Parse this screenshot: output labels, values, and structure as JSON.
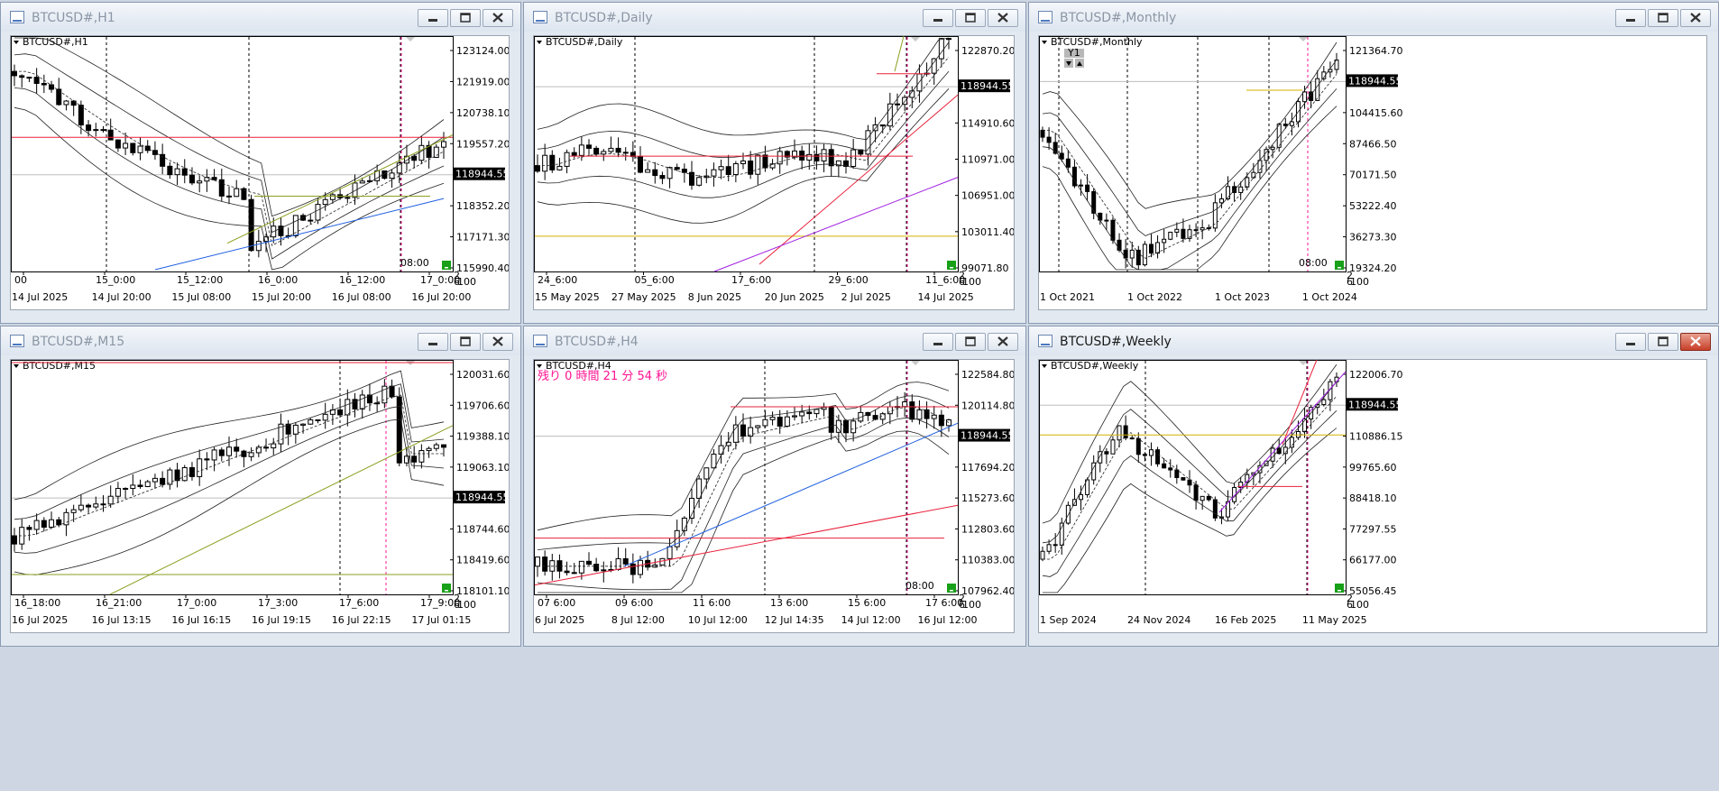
{
  "windows": [
    {
      "id": "h1",
      "title": "BTCUSD#,H1",
      "symbol_label": "BTCUSD#,H1",
      "active": false,
      "price_labels": [
        "123124.00",
        "121919.00",
        "120738.10",
        "119557.20",
        "118944.55",
        "118352.20",
        "117171.30",
        "115990.40"
      ],
      "current_price": "118944.55",
      "time_labels": [
        "00",
        "15_0:00",
        "15_12:00",
        "16_0:00",
        "16_12:00",
        "17_0:00"
      ],
      "date_labels": [
        "14 Jul 2025",
        "14 Jul 20:00",
        "15 Jul 08:00",
        "15 Jul 20:00",
        "16 Jul 08:00",
        "16 Jul 20:00"
      ],
      "timer_text": "08:00",
      "corner_labels": [
        "2",
        "6",
        "100"
      ]
    },
    {
      "id": "daily",
      "title": "BTCUSD#,Daily",
      "symbol_label": "BTCUSD#,Daily",
      "active": false,
      "price_labels": [
        "122870.20",
        "118944.55",
        "114910.60",
        "110971.00",
        "106951.00",
        "103011.40",
        "99071.80"
      ],
      "current_price": "118944.55",
      "time_labels": [
        "24_6:00",
        "05_6:00",
        "17_6:00",
        "29_6:00",
        "11_6:00"
      ],
      "date_labels": [
        "15 May 2025",
        "27 May 2025",
        "8 Jun 2025",
        "20 Jun 2025",
        "2 Jul 2025",
        "14 Jul 2025"
      ],
      "corner_labels": [
        "2",
        "6",
        "100"
      ]
    },
    {
      "id": "monthly",
      "title": "BTCUSD#,Monthly",
      "symbol_label": "BTCUSD#,Monthly",
      "active": false,
      "price_labels": [
        "121364.70",
        "118944.55",
        "104415.60",
        "87466.50",
        "70171.50",
        "53222.40",
        "36273.30",
        "19324.20"
      ],
      "current_price": "118944.55",
      "date_labels": [
        "1 Oct 2021",
        "1 Oct 2022",
        "1 Oct 2023",
        "1 Oct 2024"
      ],
      "badge_text": "Y1",
      "timer_text": "08:00",
      "corner_labels": [
        "2",
        "6",
        "100"
      ]
    },
    {
      "id": "m15",
      "title": "BTCUSD#,M15",
      "symbol_label": "BTCUSD#,M15",
      "active": false,
      "price_labels": [
        "120031.60",
        "119706.60",
        "119388.10",
        "119063.10",
        "118944.55",
        "118744.60",
        "118419.60",
        "118101.10"
      ],
      "current_price": "118944.55",
      "time_labels": [
        "16_18:00",
        "16_21:00",
        "17_0:00",
        "17_3:00",
        "17_6:00",
        "17_9:00"
      ],
      "date_labels": [
        "16 Jul 2025",
        "16 Jul 13:15",
        "16 Jul 16:15",
        "16 Jul 19:15",
        "16 Jul 22:15",
        "17 Jul 01:15"
      ],
      "corner_labels": [
        "2",
        "6",
        "100"
      ]
    },
    {
      "id": "h4",
      "title": "BTCUSD#,H4",
      "symbol_label": "BTCUSD#,H4",
      "active": false,
      "countdown_text": "残り 0 時間 21 分 54 秒",
      "price_labels": [
        "122584.80",
        "120114.80",
        "118944.55",
        "117694.20",
        "115273.60",
        "112803.60",
        "110383.00",
        "107962.40"
      ],
      "current_price": "118944.55",
      "time_labels": [
        "07 6:00",
        "09 6:00",
        "11 6:00",
        "13 6:00",
        "15 6:00",
        "17 6:00"
      ],
      "date_labels": [
        "6 Jul 2025",
        "8 Jul 12:00",
        "10 Jul 12:00",
        "12 Jul 14:35",
        "14 Jul 12:00",
        "16 Jul 12:00"
      ],
      "timer_text": "08:00",
      "corner_labels": [
        "2",
        "6",
        "100"
      ]
    },
    {
      "id": "weekly",
      "title": "BTCUSD#,Weekly",
      "symbol_label": "BTCUSD#,Weekly",
      "active": true,
      "price_labels": [
        "122006.70",
        "118944.55",
        "110886.15",
        "99765.60",
        "88418.10",
        "77297.55",
        "66177.00",
        "55056.45"
      ],
      "current_price": "118944.55",
      "date_labels": [
        "1 Sep 2024",
        "24 Nov 2024",
        "16 Feb 2025",
        "11 May 2025"
      ],
      "corner_labels": [
        "2",
        "6",
        "100"
      ]
    }
  ],
  "colors": {
    "bull": "#ffffff",
    "bear": "#000000",
    "price_tag_bg": "#000000",
    "price_tag_fg": "#ffffff",
    "resistance_line": "#e8203a",
    "support_line": "#d4b000",
    "trend_blue": "#2060e0",
    "trend_green": "#8aa020",
    "trend_purple": "#a020e0",
    "time_marker": "#ff1493",
    "timer_text": "#9aa0a8",
    "indicator_green": "#18a018"
  },
  "icons": [
    "chart-window-icon",
    "minimize-icon",
    "maximize-icon",
    "close-icon",
    "dropdown-triangle-icon"
  ]
}
